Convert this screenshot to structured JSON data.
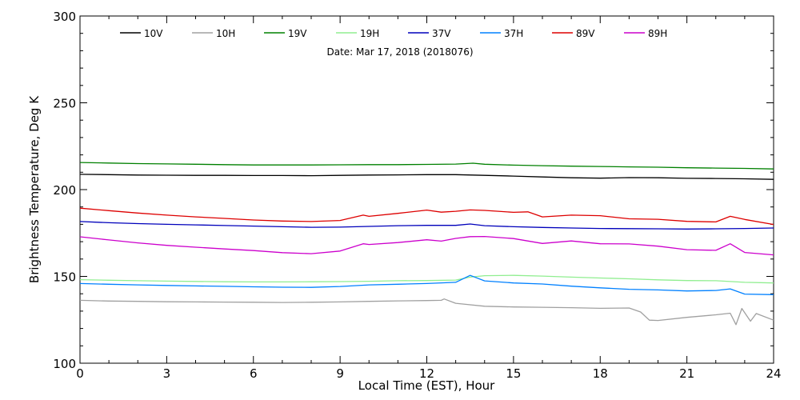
{
  "chart_data": {
    "type": "line",
    "xlabel": "Local Time (EST), Hour",
    "ylabel": "Brightness Temperature, Deg K",
    "annotation": "Date: Mar 17, 2018 (2018076)",
    "xlim": [
      0,
      24
    ],
    "ylim": [
      100,
      300
    ],
    "xticks": [
      0,
      3,
      6,
      9,
      12,
      15,
      18,
      21,
      24
    ],
    "yticks": [
      100,
      150,
      200,
      250,
      300
    ],
    "xtick_labels": [
      "0",
      "3",
      "6",
      "9",
      "12",
      "15",
      "18",
      "21",
      "24"
    ],
    "ytick_labels": [
      "100",
      "150",
      "200",
      "250",
      "300"
    ],
    "grid": false,
    "legend_position": "top",
    "series": [
      {
        "name": "10V",
        "color": "#000000",
        "points": [
          [
            0,
            208.8
          ],
          [
            1,
            208.6
          ],
          [
            2,
            208.4
          ],
          [
            3,
            208.3
          ],
          [
            4,
            208.2
          ],
          [
            5,
            208.2
          ],
          [
            6,
            208.1
          ],
          [
            7,
            208.1
          ],
          [
            8,
            208.0
          ],
          [
            9,
            208.2
          ],
          [
            10,
            208.4
          ],
          [
            11,
            208.5
          ],
          [
            12,
            208.6
          ],
          [
            13,
            208.6
          ],
          [
            14,
            208.2
          ],
          [
            15,
            207.8
          ],
          [
            16,
            207.3
          ],
          [
            17,
            206.8
          ],
          [
            18,
            206.6
          ],
          [
            19,
            206.9
          ],
          [
            20,
            206.8
          ],
          [
            21,
            206.5
          ],
          [
            22,
            206.4
          ],
          [
            23,
            206.2
          ],
          [
            24,
            205.9
          ]
        ]
      },
      {
        "name": "10H",
        "color": "#a0a0a0",
        "points": [
          [
            0,
            136.2
          ],
          [
            1,
            135.8
          ],
          [
            2,
            135.6
          ],
          [
            3,
            135.4
          ],
          [
            4,
            135.3
          ],
          [
            5,
            135.2
          ],
          [
            6,
            135.1
          ],
          [
            7,
            135.0
          ],
          [
            8,
            135.1
          ],
          [
            9,
            135.3
          ],
          [
            10,
            135.6
          ],
          [
            11,
            135.9
          ],
          [
            12,
            136.1
          ],
          [
            12.5,
            136.2
          ],
          [
            12.6,
            137.0
          ],
          [
            13,
            134.5
          ],
          [
            14,
            132.8
          ],
          [
            15,
            132.4
          ],
          [
            16,
            132.2
          ],
          [
            17,
            132.0
          ],
          [
            18,
            131.6
          ],
          [
            19,
            131.8
          ],
          [
            19.4,
            129.5
          ],
          [
            19.7,
            124.8
          ],
          [
            20,
            124.6
          ],
          [
            21,
            126.4
          ],
          [
            22,
            127.9
          ],
          [
            22.5,
            128.8
          ],
          [
            22.7,
            122.2
          ],
          [
            22.9,
            131.5
          ],
          [
            23.2,
            124.2
          ],
          [
            23.4,
            128.6
          ],
          [
            24,
            124.8
          ]
        ]
      },
      {
        "name": "19V",
        "color": "#008000",
        "points": [
          [
            0,
            215.6
          ],
          [
            1,
            215.3
          ],
          [
            2,
            215.0
          ],
          [
            3,
            214.8
          ],
          [
            4,
            214.6
          ],
          [
            5,
            214.4
          ],
          [
            6,
            214.2
          ],
          [
            7,
            214.2
          ],
          [
            8,
            214.2
          ],
          [
            9,
            214.3
          ],
          [
            10,
            214.4
          ],
          [
            11,
            214.4
          ],
          [
            12,
            214.5
          ],
          [
            13,
            214.7
          ],
          [
            13.6,
            215.2
          ],
          [
            14,
            214.6
          ],
          [
            15,
            214.1
          ],
          [
            16,
            213.8
          ],
          [
            17,
            213.5
          ],
          [
            18,
            213.3
          ],
          [
            19,
            213.1
          ],
          [
            20,
            212.9
          ],
          [
            21,
            212.6
          ],
          [
            22,
            212.4
          ],
          [
            23,
            212.2
          ],
          [
            24,
            211.9
          ]
        ]
      },
      {
        "name": "19H",
        "color": "#90ee90",
        "points": [
          [
            0,
            148.1
          ],
          [
            1,
            147.8
          ],
          [
            2,
            147.5
          ],
          [
            3,
            147.3
          ],
          [
            4,
            147.1
          ],
          [
            5,
            146.9
          ],
          [
            6,
            146.8
          ],
          [
            7,
            146.8
          ],
          [
            8,
            146.9
          ],
          [
            9,
            147.0
          ],
          [
            10,
            147.2
          ],
          [
            11,
            147.5
          ],
          [
            12,
            147.6
          ],
          [
            13,
            147.9
          ],
          [
            13.5,
            149.6
          ],
          [
            14,
            150.4
          ],
          [
            15,
            150.6
          ],
          [
            16,
            150.2
          ],
          [
            17,
            149.6
          ],
          [
            18,
            149.1
          ],
          [
            19,
            148.6
          ],
          [
            20,
            148.0
          ],
          [
            21,
            147.6
          ],
          [
            22,
            147.5
          ],
          [
            23,
            146.6
          ],
          [
            24,
            146.2
          ]
        ]
      },
      {
        "name": "37V",
        "color": "#0000bb",
        "points": [
          [
            0,
            181.6
          ],
          [
            1,
            180.9
          ],
          [
            2,
            180.4
          ],
          [
            3,
            180.0
          ],
          [
            4,
            179.7
          ],
          [
            5,
            179.3
          ],
          [
            6,
            179.0
          ],
          [
            7,
            178.6
          ],
          [
            8,
            178.3
          ],
          [
            9,
            178.4
          ],
          [
            10,
            178.8
          ],
          [
            11,
            179.2
          ],
          [
            12,
            179.4
          ],
          [
            13,
            179.4
          ],
          [
            13.5,
            180.2
          ],
          [
            14,
            179.2
          ],
          [
            15,
            178.6
          ],
          [
            16,
            178.2
          ],
          [
            17,
            177.9
          ],
          [
            18,
            177.6
          ],
          [
            19,
            177.5
          ],
          [
            20,
            177.4
          ],
          [
            21,
            177.3
          ],
          [
            22,
            177.4
          ],
          [
            23,
            177.6
          ],
          [
            24,
            177.9
          ]
        ]
      },
      {
        "name": "37H",
        "color": "#0080ff",
        "points": [
          [
            0,
            145.9
          ],
          [
            1,
            145.5
          ],
          [
            2,
            145.1
          ],
          [
            3,
            144.8
          ],
          [
            4,
            144.5
          ],
          [
            5,
            144.3
          ],
          [
            6,
            144.0
          ],
          [
            7,
            143.8
          ],
          [
            8,
            143.7
          ],
          [
            9,
            144.2
          ],
          [
            10,
            145.1
          ],
          [
            11,
            145.5
          ],
          [
            12,
            145.9
          ],
          [
            13,
            146.6
          ],
          [
            13.5,
            150.6
          ],
          [
            14,
            147.4
          ],
          [
            15,
            146.2
          ],
          [
            16,
            145.6
          ],
          [
            17,
            144.4
          ],
          [
            18,
            143.4
          ],
          [
            19,
            142.6
          ],
          [
            20,
            142.2
          ],
          [
            21,
            141.6
          ],
          [
            22,
            141.9
          ],
          [
            22.5,
            142.8
          ],
          [
            23,
            139.8
          ],
          [
            24,
            139.5
          ]
        ]
      },
      {
        "name": "89V",
        "color": "#dd0000",
        "points": [
          [
            0,
            189.3
          ],
          [
            1,
            187.9
          ],
          [
            2,
            186.5
          ],
          [
            3,
            185.3
          ],
          [
            4,
            184.3
          ],
          [
            5,
            183.4
          ],
          [
            6,
            182.5
          ],
          [
            7,
            181.9
          ],
          [
            8,
            181.6
          ],
          [
            9,
            182.2
          ],
          [
            9.8,
            185.3
          ],
          [
            10,
            184.6
          ],
          [
            11,
            186.3
          ],
          [
            12,
            188.2
          ],
          [
            12.5,
            187.0
          ],
          [
            13,
            187.5
          ],
          [
            13.5,
            188.3
          ],
          [
            14,
            188.0
          ],
          [
            15,
            186.9
          ],
          [
            15.5,
            187.2
          ],
          [
            16,
            184.3
          ],
          [
            17,
            185.3
          ],
          [
            18,
            185.0
          ],
          [
            19,
            183.2
          ],
          [
            20,
            182.9
          ],
          [
            21,
            181.7
          ],
          [
            22,
            181.4
          ],
          [
            22.5,
            184.6
          ],
          [
            23,
            182.8
          ],
          [
            24,
            179.9
          ]
        ]
      },
      {
        "name": "89H",
        "color": "#cc00cc",
        "points": [
          [
            0,
            172.8
          ],
          [
            1,
            171.0
          ],
          [
            2,
            169.3
          ],
          [
            3,
            167.9
          ],
          [
            4,
            166.8
          ],
          [
            5,
            165.8
          ],
          [
            6,
            164.9
          ],
          [
            7,
            163.7
          ],
          [
            8,
            163.1
          ],
          [
            9,
            164.6
          ],
          [
            9.8,
            168.8
          ],
          [
            10,
            168.4
          ],
          [
            11,
            169.5
          ],
          [
            12,
            171.1
          ],
          [
            12.5,
            170.3
          ],
          [
            13,
            171.9
          ],
          [
            13.5,
            172.9
          ],
          [
            14,
            173.0
          ],
          [
            15,
            171.8
          ],
          [
            16,
            169.0
          ],
          [
            17,
            170.4
          ],
          [
            18,
            168.8
          ],
          [
            19,
            168.7
          ],
          [
            20,
            167.4
          ],
          [
            21,
            165.4
          ],
          [
            22,
            165.0
          ],
          [
            22.5,
            168.8
          ],
          [
            23,
            163.8
          ],
          [
            24,
            162.4
          ]
        ]
      }
    ]
  }
}
